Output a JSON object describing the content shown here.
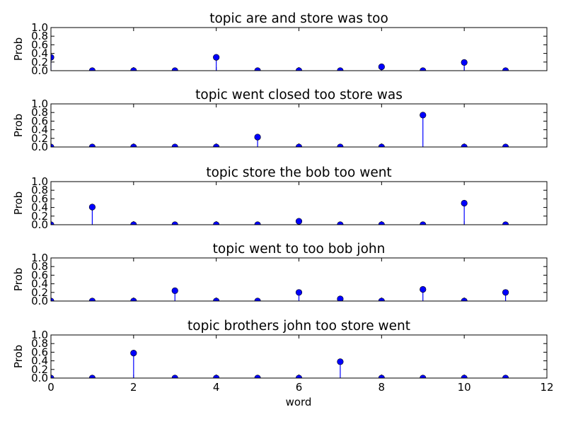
{
  "chart_data": {
    "type": "stem",
    "xlabel": "word",
    "xlim": [
      0,
      12
    ],
    "x_ticks": [
      "0",
      "2",
      "4",
      "6",
      "8",
      "10",
      "12"
    ],
    "y_ticks": [
      "0.0",
      "0.2",
      "0.4",
      "0.6",
      "0.8",
      "1.0"
    ],
    "marker_color": "#0000ff",
    "subplots": [
      {
        "title": "topic are and store was too",
        "ylabel": "Prob",
        "ylim": [
          0,
          1
        ],
        "x": [
          0,
          1,
          2,
          3,
          4,
          5,
          6,
          7,
          8,
          9,
          10,
          11
        ],
        "values": [
          0.31,
          0.0,
          0.0,
          0.0,
          0.31,
          0.0,
          0.0,
          0.0,
          0.09,
          0.0,
          0.19,
          0.0
        ]
      },
      {
        "title": "topic went closed too store was",
        "ylabel": "Prob",
        "ylim": [
          0,
          1
        ],
        "x": [
          0,
          1,
          2,
          3,
          4,
          5,
          6,
          7,
          8,
          9,
          10,
          11
        ],
        "values": [
          0.0,
          0.0,
          0.0,
          0.0,
          0.0,
          0.23,
          0.0,
          0.0,
          0.0,
          0.74,
          0.0,
          0.0
        ]
      },
      {
        "title": "topic store the bob too went",
        "ylabel": "Prob",
        "ylim": [
          0,
          1
        ],
        "x": [
          0,
          1,
          2,
          3,
          4,
          5,
          6,
          7,
          8,
          9,
          10,
          11
        ],
        "values": [
          0.0,
          0.41,
          0.0,
          0.0,
          0.0,
          0.0,
          0.08,
          0.0,
          0.0,
          0.0,
          0.5,
          0.0
        ]
      },
      {
        "title": "topic went to too bob john",
        "ylabel": "Prob",
        "ylim": [
          0,
          1
        ],
        "x": [
          0,
          1,
          2,
          3,
          4,
          5,
          6,
          7,
          8,
          9,
          10,
          11
        ],
        "values": [
          0.0,
          0.0,
          0.0,
          0.24,
          0.0,
          0.0,
          0.2,
          0.05,
          0.0,
          0.27,
          0.0,
          0.2
        ]
      },
      {
        "title": "topic brothers john too store went",
        "ylabel": "Prob",
        "ylim": [
          0,
          1
        ],
        "x": [
          0,
          1,
          2,
          3,
          4,
          5,
          6,
          7,
          8,
          9,
          10,
          11
        ],
        "values": [
          0.0,
          0.0,
          0.58,
          0.0,
          0.0,
          0.0,
          0.0,
          0.38,
          0.0,
          0.0,
          0.0,
          0.0
        ]
      }
    ]
  }
}
